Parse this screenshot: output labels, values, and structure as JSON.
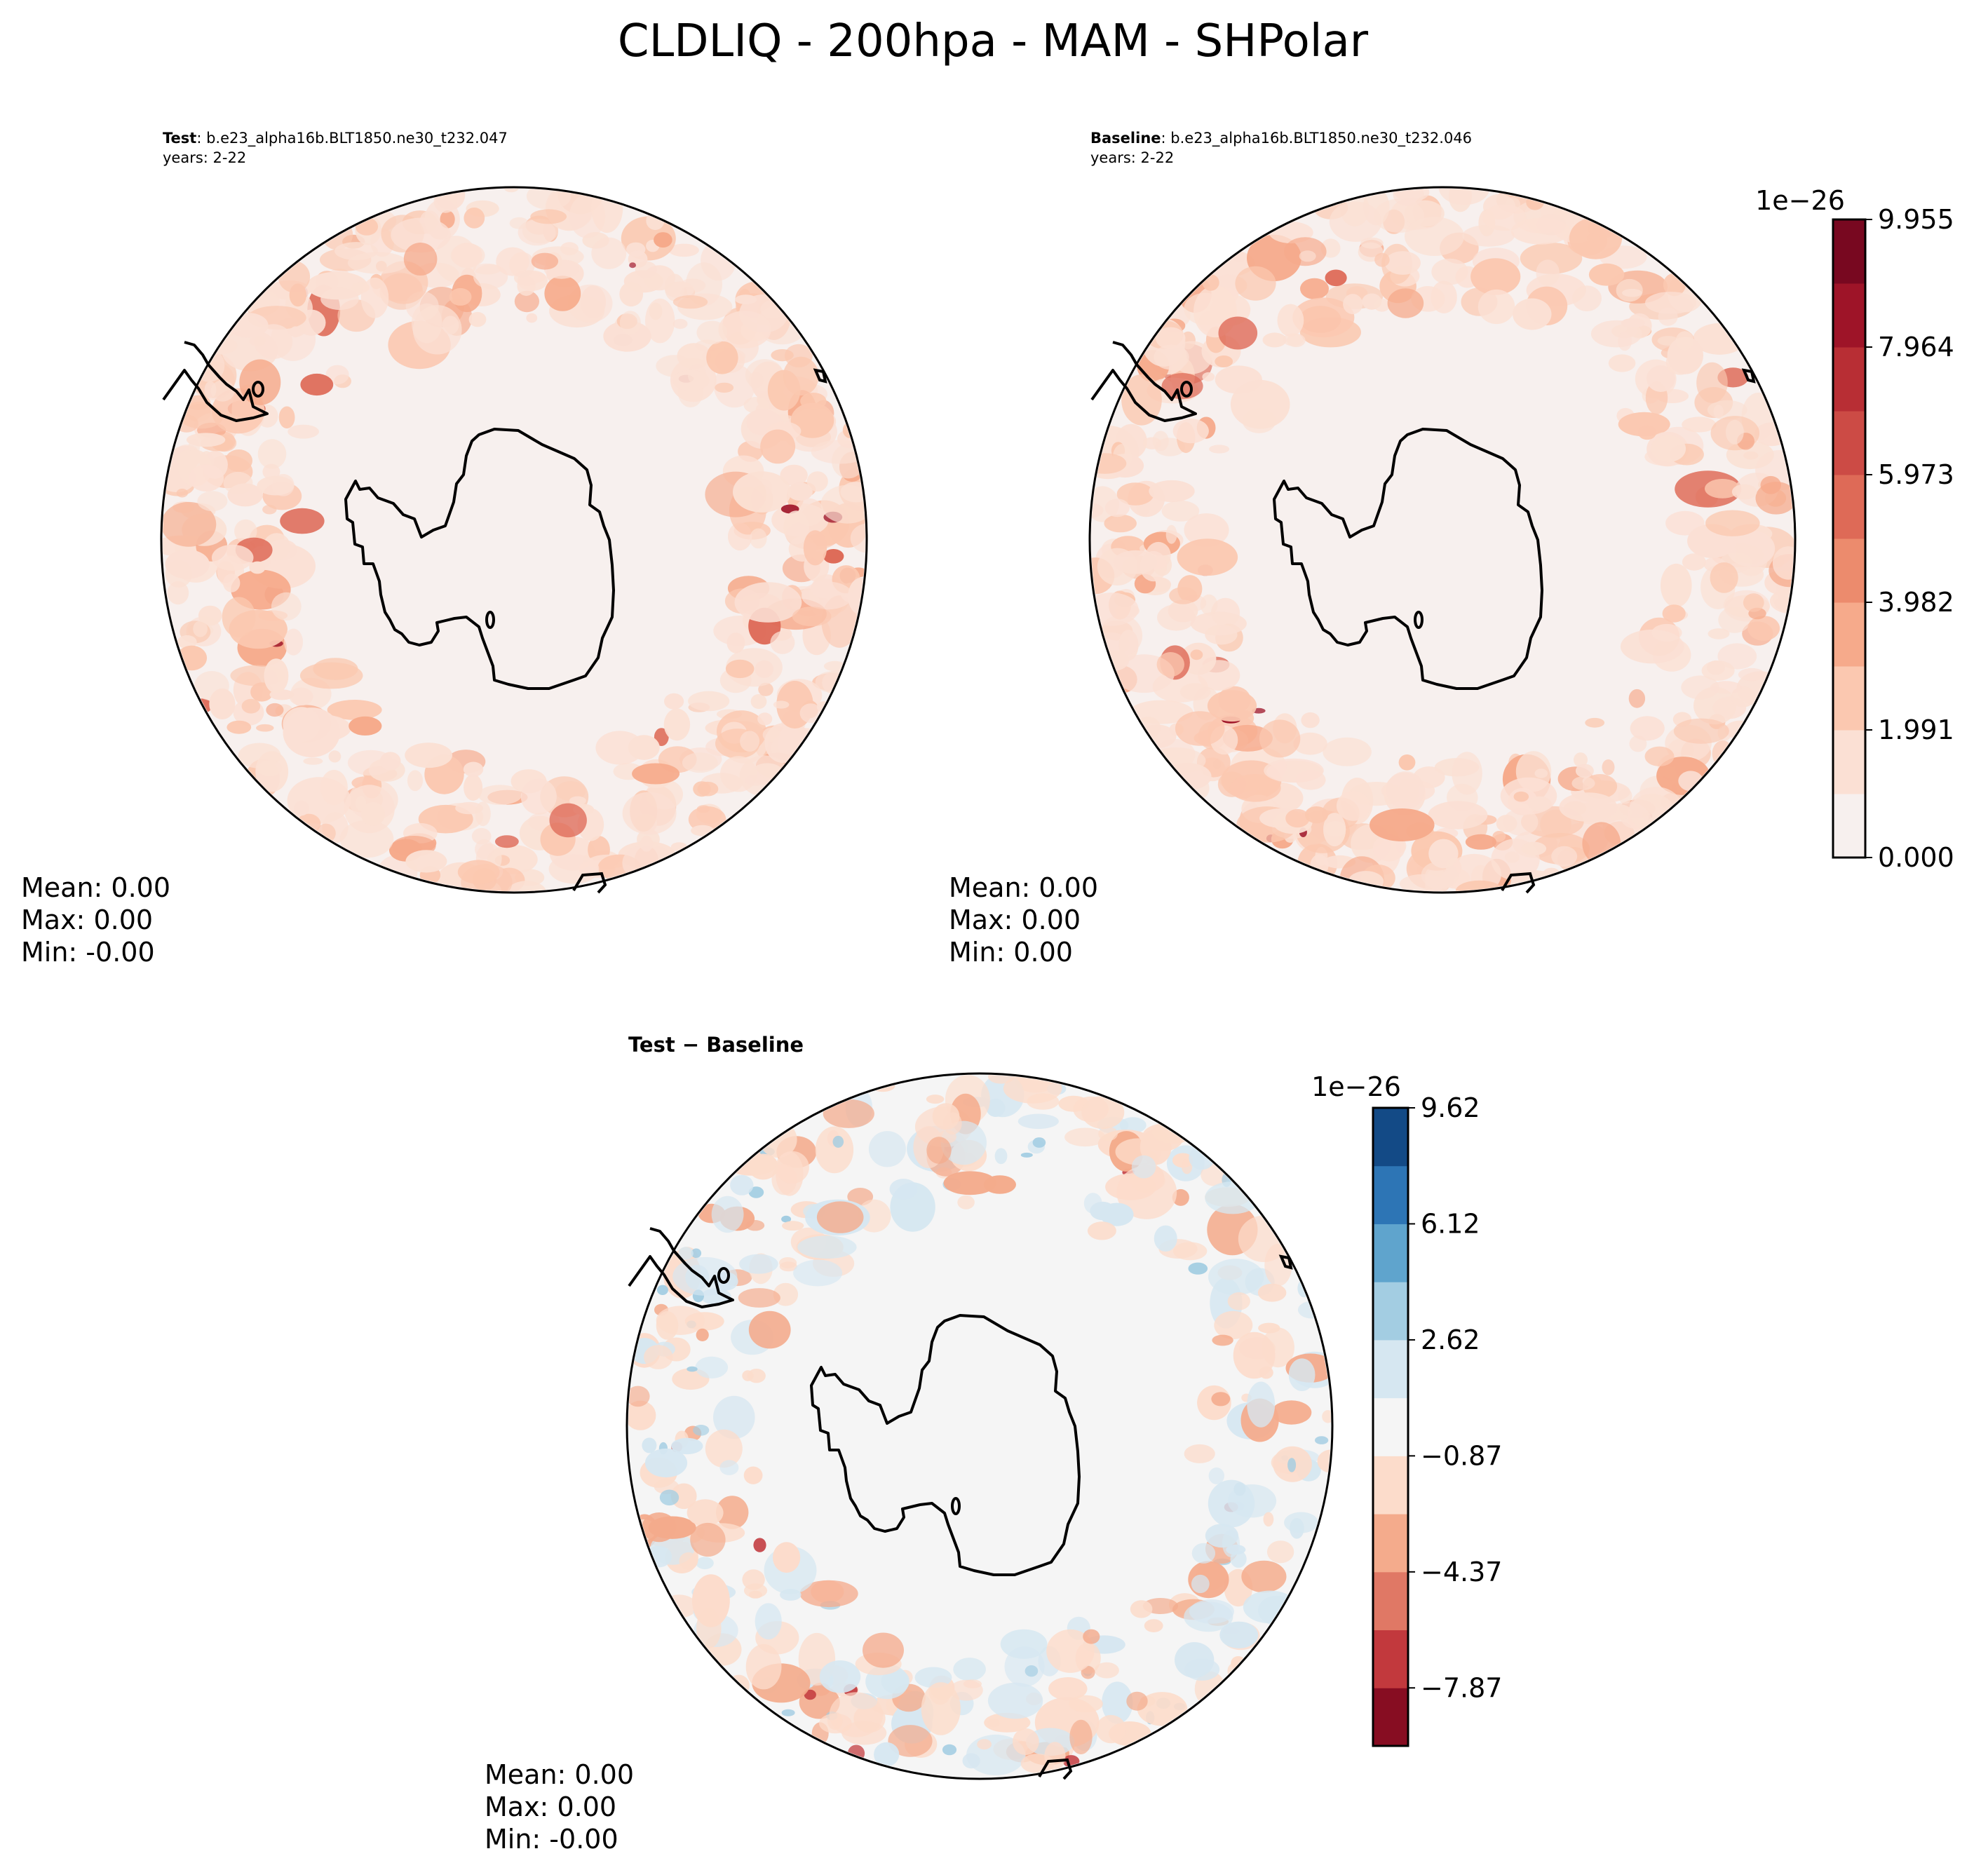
{
  "title": "CLDLIQ - 200hpa - MAM - SHPolar",
  "panels": [
    {
      "id": "test",
      "label_bold": "Test",
      "label_rest": ": b.e23_alpha16b.BLT1850.ne30_t232.047",
      "years": "years: 2-22",
      "stats": [
        "Mean:  0.00",
        "Max:  0.00",
        "Min: -0.00"
      ]
    },
    {
      "id": "baseline",
      "label_bold": "Baseline",
      "label_rest": ": b.e23_alpha16b.BLT1850.ne30_t232.046",
      "years": "years: 2-22",
      "stats": [
        "Mean:  0.00",
        "Max:  0.00",
        "Min:  0.00"
      ]
    },
    {
      "id": "diff",
      "label_bold": "Test − Baseline",
      "stats": [
        "Mean:  0.00",
        "Max:  0.00",
        "Min: -0.00"
      ]
    }
  ],
  "colorbar_main": {
    "exponent": "1e−26",
    "ticks": [
      "0.000",
      "1.991",
      "3.982",
      "5.973",
      "7.964",
      "9.955"
    ],
    "colors": [
      "#f7f0ee",
      "#fbe0d4",
      "#fbc8b0",
      "#f6aa8b",
      "#ec8b6d",
      "#de6a57",
      "#cc4b45",
      "#b82e34",
      "#9e1428",
      "#780820"
    ]
  },
  "colorbar_diff": {
    "exponent": "1e−26",
    "ticks": [
      "9.62",
      "6.12",
      "2.62",
      "−0.87",
      "−4.37",
      "−7.87"
    ],
    "colors": [
      "#870d22",
      "#c2393d",
      "#e07865",
      "#f4ab8c",
      "#fcdccb",
      "#f5f5f5",
      "#d6e7f1",
      "#a3cde2",
      "#5fa4cd",
      "#2d75b5",
      "#134a86"
    ]
  },
  "map_colors": {
    "main_background": "#f7f0ee",
    "main_warm": [
      "#fbe0d4",
      "#fbc8b0",
      "#f6aa8b",
      "#de6a57",
      "#9e1428"
    ],
    "diff_background": "#f5f5f5",
    "diff_warm": [
      "#fcdccb",
      "#f4ab8c",
      "#c2393d"
    ],
    "diff_cool": [
      "#d6e7f1",
      "#a3cde2"
    ]
  }
}
